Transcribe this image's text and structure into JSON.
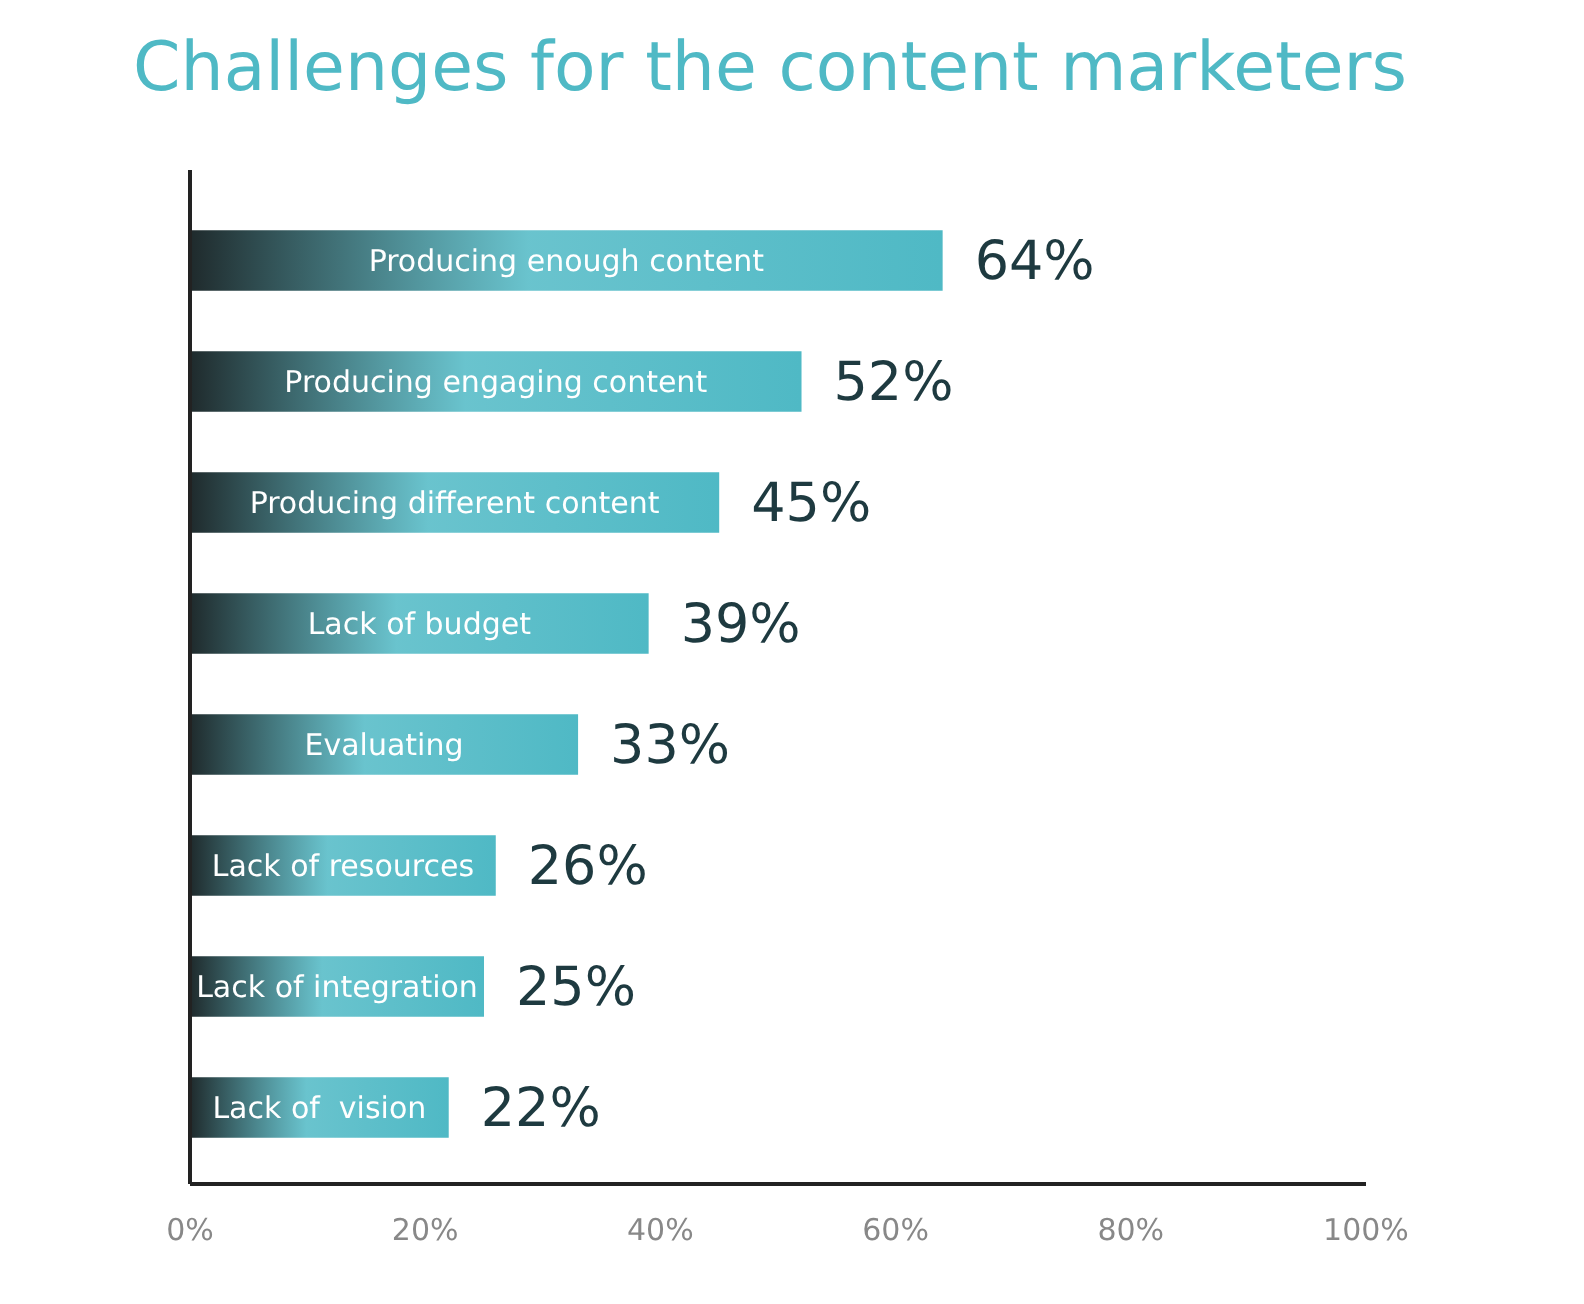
{
  "chart_data": {
    "type": "bar",
    "orientation": "horizontal",
    "title": "Challenges for the content marketers",
    "categories": [
      "Producing enough content",
      "Producing engaging content",
      "Producing different content",
      "Lack of budget",
      "Evaluating",
      "Lack of resources",
      "Lack of integration",
      "Lack of  vision"
    ],
    "values": [
      64,
      52,
      45,
      39,
      33,
      26,
      25,
      22
    ],
    "value_labels": [
      "64%",
      "52%",
      "45%",
      "39%",
      "33%",
      "26%",
      "25%",
      "22%"
    ],
    "color": "#4fb9c5",
    "xlim": [
      0,
      100
    ],
    "xticks": [
      {
        "value": 0,
        "label": "0%"
      },
      {
        "value": 20,
        "label": "20%"
      },
      {
        "value": 40,
        "label": "40%"
      },
      {
        "value": 60,
        "label": "60%"
      },
      {
        "value": 80,
        "label": "80%"
      },
      {
        "value": 100,
        "label": "100%"
      }
    ],
    "grid": false
  }
}
